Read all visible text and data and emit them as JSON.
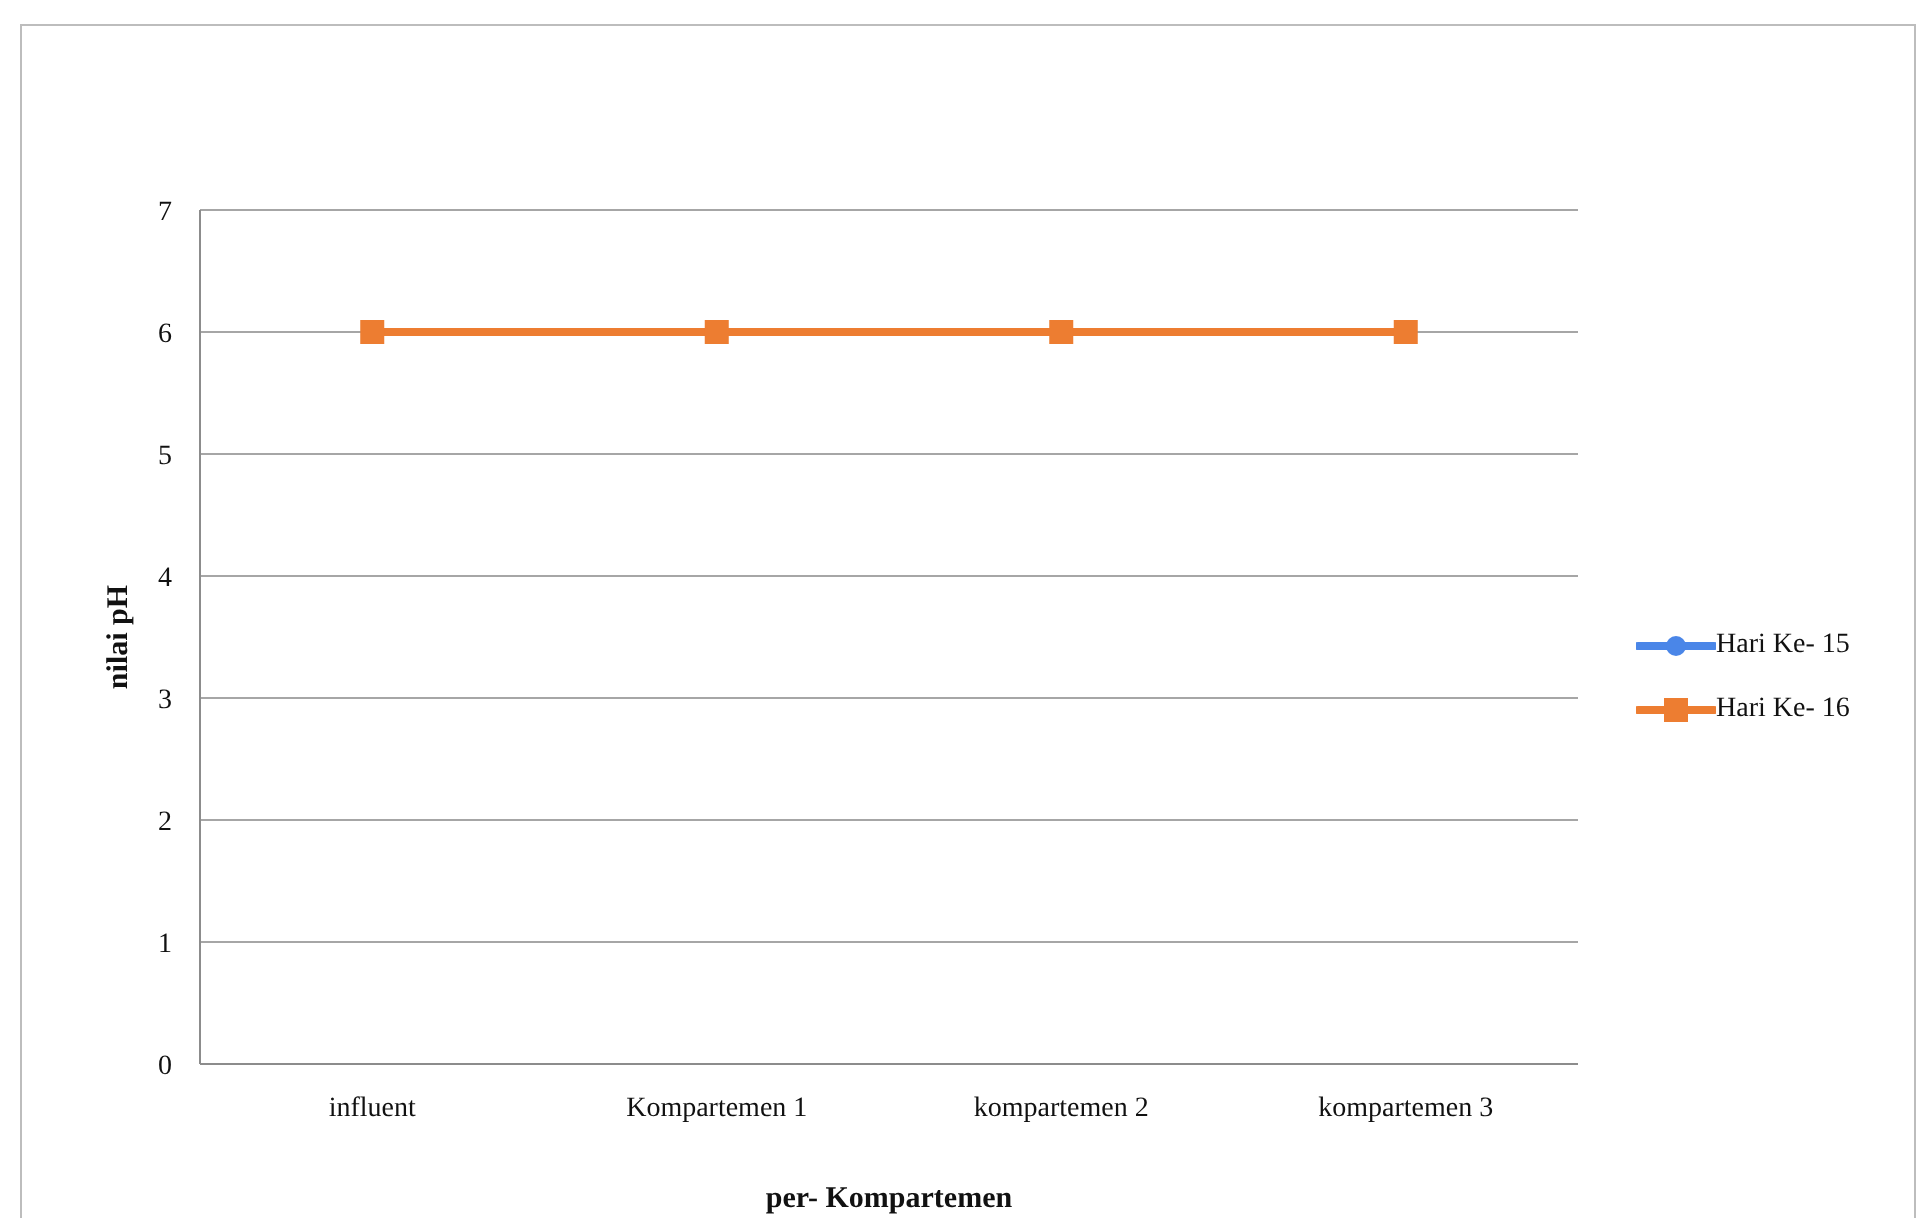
{
  "chart_data": {
    "type": "line",
    "xlabel": "per- Kompartemen",
    "ylabel": "nilai pH",
    "categories": [
      "influent",
      "Kompartemen 1",
      "kompartemen 2",
      "kompartemen 3"
    ],
    "series": [
      {
        "name": "Hari Ke- 15",
        "color": "#4a86e8",
        "marker": "circle",
        "values": [
          null,
          null,
          null,
          null
        ]
      },
      {
        "name": "Hari Ke- 16",
        "color": "#ed7d31",
        "marker": "square",
        "values": [
          6,
          6,
          6,
          6
        ]
      }
    ],
    "ylim": [
      0,
      7
    ],
    "yticks": [
      0,
      1,
      2,
      3,
      4,
      5,
      6,
      7
    ],
    "grid": "y",
    "legend": "right"
  }
}
